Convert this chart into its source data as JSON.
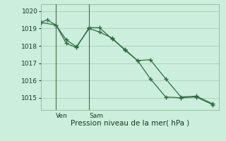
{
  "xlabel": "Pression niveau de la mer( hPa )",
  "background_color": "#cceedd",
  "grid_color": "#aaccbb",
  "line_color": "#2d6e3e",
  "vline_color": "#4a6a4a",
  "ylim": [
    1014.3,
    1020.4
  ],
  "xlim": [
    0,
    14
  ],
  "yticks": [
    1015,
    1016,
    1017,
    1018,
    1019,
    1020
  ],
  "ytick_fontsize": 6.5,
  "xlabel_fontsize": 7.5,
  "ven_x": 1.2,
  "sam_x": 3.8,
  "ven_label": "Ven",
  "sam_label": "Sam",
  "line1_x": [
    0,
    0.5,
    1.2,
    2.0,
    2.8,
    3.8,
    4.6,
    5.6,
    6.6,
    7.6,
    8.6,
    9.8,
    11.0,
    12.2,
    13.5
  ],
  "line1_y": [
    1019.35,
    1019.5,
    1019.2,
    1018.15,
    1017.9,
    1019.05,
    1019.05,
    1018.4,
    1017.8,
    1017.15,
    1017.2,
    1016.1,
    1015.05,
    1015.1,
    1014.65
  ],
  "line2_x": [
    0,
    1.2,
    2.0,
    2.8,
    3.8,
    4.6,
    5.6,
    6.6,
    7.6,
    8.6,
    9.8,
    11.0,
    12.2,
    13.5
  ],
  "line2_y": [
    1019.35,
    1019.2,
    1018.35,
    1017.95,
    1019.0,
    1018.8,
    1018.45,
    1017.75,
    1017.15,
    1016.1,
    1015.05,
    1015.0,
    1015.05,
    1014.6
  ]
}
